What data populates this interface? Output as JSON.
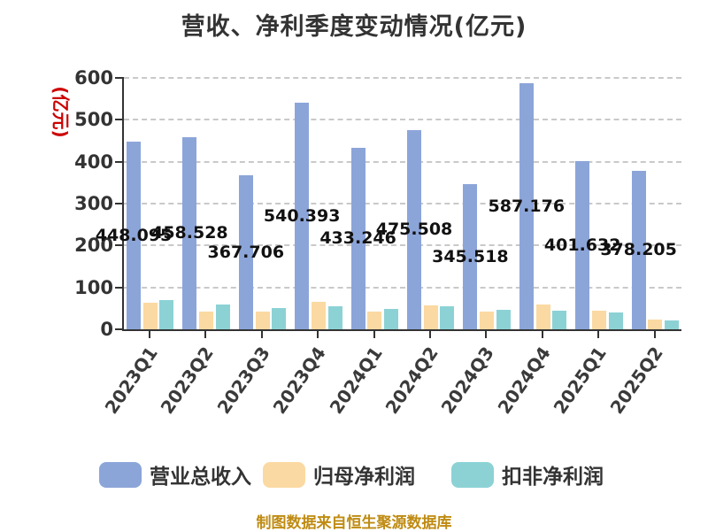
{
  "title": "营收、净利季度变动情况(亿元)",
  "y_axis_title": "(亿元)",
  "caption": "制图数据来自恒生聚源数据库",
  "colors": {
    "title_text": "#333333",
    "axis": "#333333",
    "gridline": "#c9c9c9",
    "bar_label": "#111111",
    "y_axis_title": "#cc0000",
    "caption": "#bf8b12",
    "revenue_bar": "#8CA5D9",
    "net_profit_bar": "#FBD9A2",
    "non_gaap_bar": "#8CD2D5"
  },
  "chart_data": {
    "type": "bar",
    "title": "营收、净利季度变动情况(亿元)",
    "ylabel": "(亿元)",
    "ylim": [
      0,
      600
    ],
    "y_ticks": [
      0,
      100,
      200,
      300,
      400,
      500,
      600
    ],
    "grid": "horizontal-dashed",
    "legend_position": "bottom",
    "categories": [
      "2023Q1",
      "2023Q2",
      "2023Q3",
      "2023Q4",
      "2024Q1",
      "2024Q2",
      "2024Q3",
      "2024Q4",
      "2025Q1",
      "2025Q2"
    ],
    "series": [
      {
        "name": "营业总收入",
        "color": "#8CA5D9",
        "labels_shown": true,
        "values": [
          448.095,
          458.528,
          367.706,
          540.393,
          433.246,
          475.508,
          345.518,
          587.176,
          401.632,
          378.205
        ]
      },
      {
        "name": "归母净利润",
        "color": "#FBD9A2",
        "labels_shown": false,
        "values": [
          64,
          42,
          43,
          66,
          42,
          58,
          42,
          60,
          44,
          24
        ]
      },
      {
        "name": "扣非净利润",
        "color": "#8CD2D5",
        "labels_shown": false,
        "values": [
          70,
          60,
          50,
          54,
          49,
          54,
          47,
          44,
          40,
          21
        ]
      }
    ]
  },
  "legend": {
    "items": [
      {
        "label": "营业总收入",
        "color": "#8CA5D9"
      },
      {
        "label": "归母净利润",
        "color": "#FBD9A2"
      },
      {
        "label": "扣非净利润",
        "color": "#8CD2D5"
      }
    ]
  }
}
